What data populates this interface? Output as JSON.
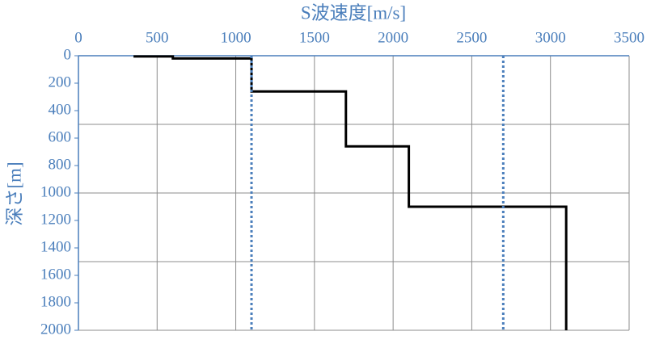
{
  "chart_data": {
    "type": "line",
    "x_label": "S波速度[m/s]",
    "y_label": "深さ[m]",
    "xlim": [
      0,
      3500
    ],
    "xticks": [
      0,
      500,
      1000,
      1500,
      2000,
      2500,
      3000,
      3500
    ],
    "ylim": [
      0,
      2000
    ],
    "y_inverted": true,
    "yticks": [
      0,
      200,
      400,
      600,
      800,
      1000,
      1200,
      1400,
      1600,
      1800,
      2000
    ],
    "ygrid": [
      500,
      1000,
      1500
    ],
    "grid": true,
    "series": [
      {
        "color": "#000000",
        "style": "solid",
        "x": [
          350,
          600,
          600,
          1100,
          1100,
          1700,
          1700,
          2100,
          2100,
          3100,
          3100
        ],
        "values": [
          5,
          5,
          20,
          20,
          260,
          260,
          660,
          660,
          1100,
          1100,
          2000
        ]
      },
      {
        "color": "#4a7ebb",
        "style": "dotted",
        "x": [
          1100,
          1100
        ],
        "values": [
          0,
          2000
        ]
      },
      {
        "color": "#4a7ebb",
        "style": "dotted",
        "x": [
          2700,
          2700
        ],
        "values": [
          0,
          2000
        ]
      }
    ]
  }
}
